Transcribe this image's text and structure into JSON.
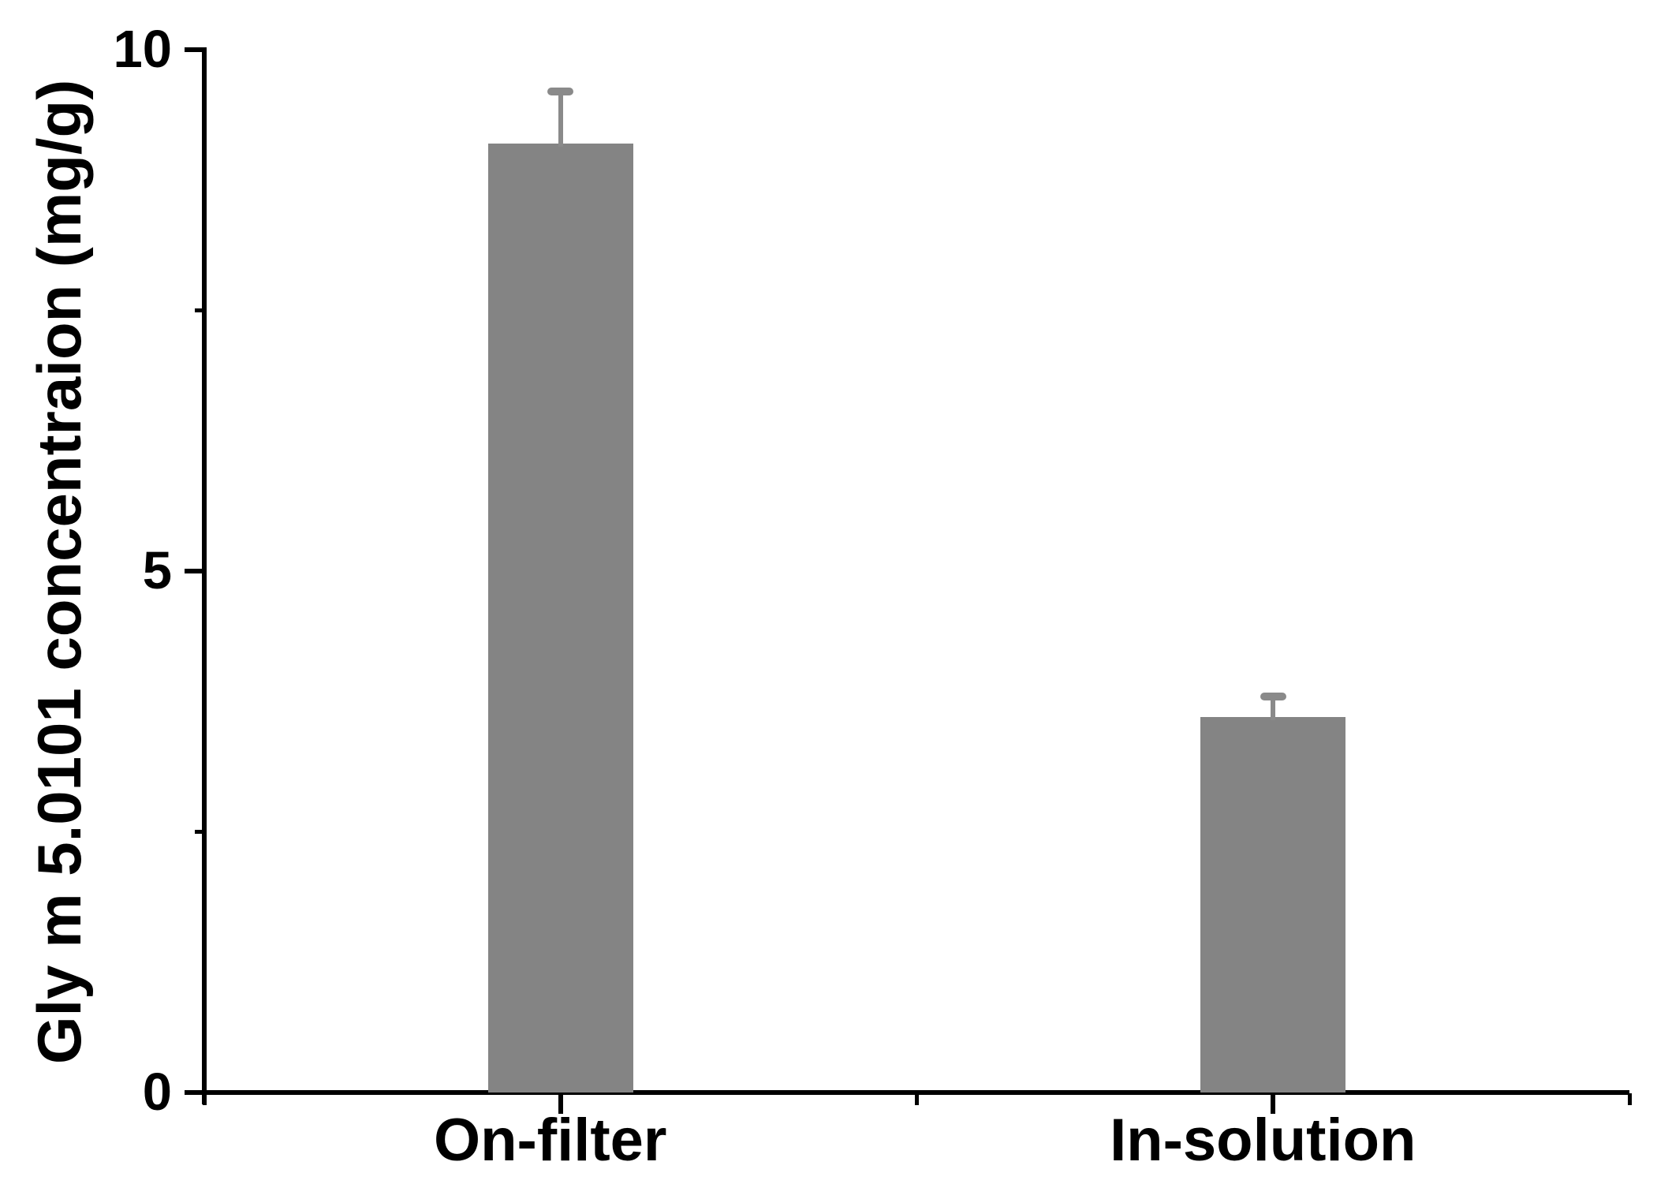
{
  "chart_data": {
    "type": "bar",
    "categories": [
      "On-filter",
      "In-solution"
    ],
    "values": [
      9.1,
      3.6
    ],
    "errors_plus": [
      0.5,
      0.2
    ],
    "title": "",
    "xlabel": "",
    "ylabel": "Gly m 5.0101 concentraion (mg/g)",
    "ylim": [
      0,
      10
    ],
    "yticks_major": [
      10,
      5,
      0
    ],
    "yticks_minor": [
      7.5,
      2.5
    ],
    "grid": false,
    "legend": false,
    "bar_color": "#848484",
    "error_bar_color": "#8a8a8a",
    "axis_color": "#000000",
    "background_color": "#ffffff"
  }
}
